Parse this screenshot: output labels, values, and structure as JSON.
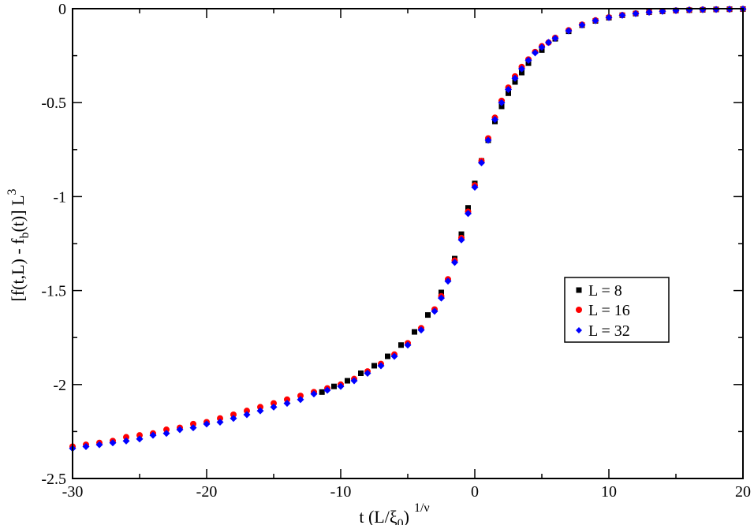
{
  "chart_data": {
    "type": "scatter",
    "title": "",
    "xlabel": {
      "base": "t (L/ξ",
      "sub": "0",
      "close": ")",
      "sup": "1/ν"
    },
    "ylabel": {
      "p1": "[f(t,L) - f",
      "sub": "b",
      "p2": "(t)] L",
      "sup": "3"
    },
    "xlim": [
      -30,
      20
    ],
    "ylim": [
      -2.5,
      0
    ],
    "xticks": [
      -30,
      -20,
      -10,
      0,
      10,
      20
    ],
    "xtick_labels": [
      "-30",
      "-20",
      "-10",
      "0",
      "10",
      "20"
    ],
    "yticks": [
      0,
      -0.5,
      -1,
      -1.5,
      -2,
      -2.5
    ],
    "ytick_labels": [
      "0",
      "-0.5",
      "-1",
      "-1.5",
      "-2",
      "-2.5"
    ],
    "x_minor_step": 5,
    "y_minor_step": 0.25,
    "grid": false,
    "legend_position": "right",
    "series": [
      {
        "name": "L = 8",
        "marker": "square",
        "color": "#000000",
        "x": [
          -11.4,
          -10.5,
          -9.5,
          -8.5,
          -7.5,
          -6.5,
          -5.5,
          -4.5,
          -3.5,
          -2.5,
          -1.5,
          -1.0,
          -0.5,
          0,
          0.5,
          1.0,
          1.5,
          2.0,
          2.5,
          3.0,
          3.5,
          4.0,
          5.0,
          6.0,
          7.0,
          8.0,
          9.0,
          10.0,
          11.0,
          12.0,
          13.0,
          14.0,
          15.0,
          16.0,
          17.0,
          18.0,
          19.0,
          20.0
        ],
        "y": [
          -2.04,
          -2.01,
          -1.98,
          -1.94,
          -1.9,
          -1.85,
          -1.79,
          -1.72,
          -1.63,
          -1.51,
          -1.33,
          -1.2,
          -1.06,
          -0.93,
          -0.81,
          -0.7,
          -0.6,
          -0.52,
          -0.45,
          -0.39,
          -0.34,
          -0.29,
          -0.22,
          -0.16,
          -0.12,
          -0.088,
          -0.065,
          -0.048,
          -0.035,
          -0.026,
          -0.019,
          -0.014,
          -0.01,
          -0.008,
          -0.006,
          -0.004,
          -0.003,
          -0.002
        ]
      },
      {
        "name": "L = 16",
        "marker": "circle",
        "color": "#ff0000",
        "x": [
          -30,
          -29,
          -28,
          -27,
          -26,
          -25,
          -24,
          -23,
          -22,
          -21,
          -20,
          -19,
          -18,
          -17,
          -16,
          -15,
          -14,
          -13,
          -12,
          -11,
          -10,
          -9,
          -8,
          -7,
          -6,
          -5,
          -4,
          -3,
          -2.5,
          -2,
          -1.5,
          -1,
          -0.5,
          0,
          0.5,
          1,
          1.5,
          2,
          2.5,
          3,
          3.5,
          4,
          4.5,
          5,
          5.5,
          6,
          7,
          8,
          9,
          10,
          11,
          12,
          13,
          14,
          15,
          16,
          17,
          18,
          19,
          20
        ],
        "y": [
          -2.33,
          -2.32,
          -2.31,
          -2.3,
          -2.28,
          -2.27,
          -2.26,
          -2.24,
          -2.23,
          -2.21,
          -2.2,
          -2.18,
          -2.16,
          -2.14,
          -2.12,
          -2.1,
          -2.08,
          -2.06,
          -2.04,
          -2.02,
          -2.0,
          -1.97,
          -1.93,
          -1.89,
          -1.84,
          -1.78,
          -1.7,
          -1.6,
          -1.53,
          -1.44,
          -1.34,
          -1.22,
          -1.08,
          -0.94,
          -0.81,
          -0.69,
          -0.58,
          -0.49,
          -0.42,
          -0.36,
          -0.31,
          -0.27,
          -0.23,
          -0.2,
          -0.18,
          -0.155,
          -0.115,
          -0.085,
          -0.062,
          -0.046,
          -0.034,
          -0.025,
          -0.018,
          -0.013,
          -0.01,
          -0.007,
          -0.005,
          -0.004,
          -0.003,
          -0.002
        ]
      },
      {
        "name": "L = 32",
        "marker": "diamond",
        "color": "#0000ff",
        "x": [
          -30,
          -29,
          -28,
          -27,
          -26,
          -25,
          -24,
          -23,
          -22,
          -21,
          -20,
          -19,
          -18,
          -17,
          -16,
          -15,
          -14,
          -13,
          -12,
          -11,
          -10,
          -9,
          -8,
          -7,
          -6,
          -5,
          -4,
          -3,
          -2.5,
          -2,
          -1.5,
          -1,
          -0.5,
          0,
          0.5,
          1,
          1.5,
          2,
          2.5,
          3,
          3.5,
          4,
          4.5,
          5,
          5.5,
          6,
          7,
          8,
          9,
          10,
          11,
          12,
          13,
          14,
          15,
          16,
          17,
          18,
          19,
          20
        ],
        "y": [
          -2.34,
          -2.33,
          -2.32,
          -2.31,
          -2.3,
          -2.29,
          -2.27,
          -2.26,
          -2.24,
          -2.23,
          -2.21,
          -2.2,
          -2.18,
          -2.16,
          -2.14,
          -2.12,
          -2.1,
          -2.08,
          -2.05,
          -2.03,
          -2.01,
          -1.98,
          -1.94,
          -1.9,
          -1.85,
          -1.79,
          -1.71,
          -1.61,
          -1.54,
          -1.45,
          -1.35,
          -1.23,
          -1.09,
          -0.95,
          -0.82,
          -0.7,
          -0.59,
          -0.5,
          -0.43,
          -0.37,
          -0.32,
          -0.275,
          -0.235,
          -0.205,
          -0.18,
          -0.158,
          -0.118,
          -0.087,
          -0.064,
          -0.047,
          -0.035,
          -0.026,
          -0.019,
          -0.014,
          -0.01,
          -0.007,
          -0.005,
          -0.004,
          -0.003,
          -0.002
        ]
      }
    ]
  }
}
